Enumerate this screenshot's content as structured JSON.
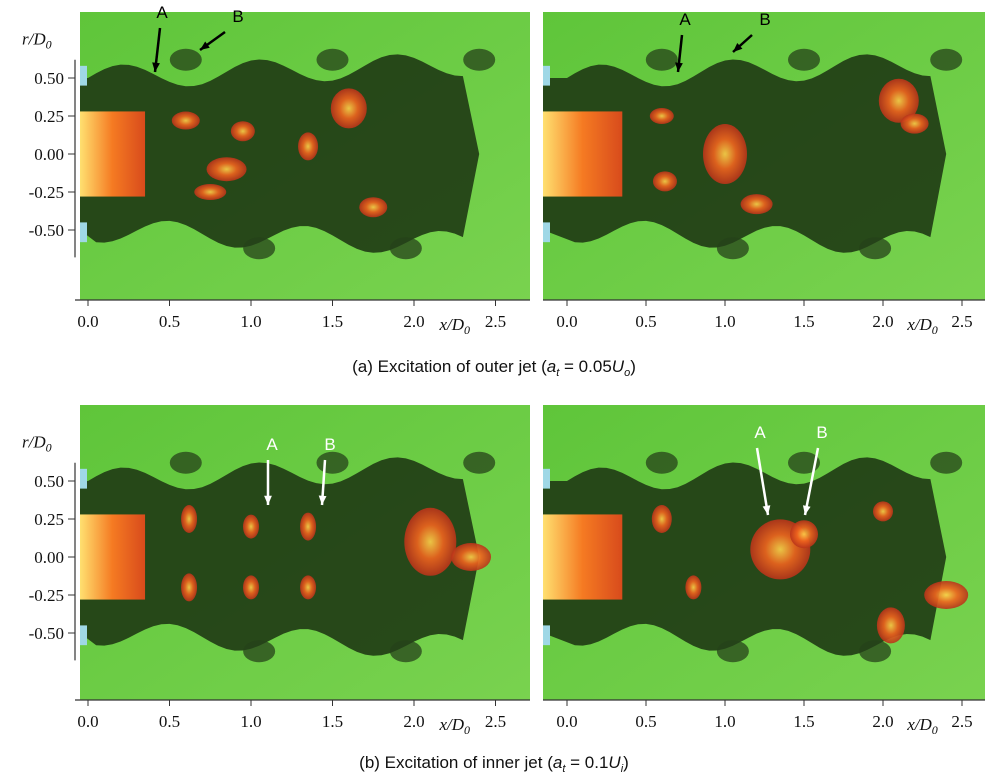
{
  "figure": {
    "rows": [
      {
        "caption": {
          "text": "(a) Excitation of outer jet (",
          "var": "a",
          "var_sub": "t",
          "eq": " = 0.05",
          "u": "U",
          "u_sub": "o",
          "close": ")"
        },
        "y_axis": {
          "label": "r/D",
          "label_sub": "0",
          "ticks": [
            {
              "value": 0.5,
              "label": "0.50"
            },
            {
              "value": 0.25,
              "label": "0.25"
            },
            {
              "value": 0,
              "label": "0.00"
            },
            {
              "value": -0.25,
              "label": "-0.25"
            },
            {
              "value": -0.5,
              "label": "-0.50"
            }
          ]
        },
        "images": [
          {
            "x_axis": {
              "label": "x/D",
              "label_sub": "0",
              "ticks": [
                {
                  "value": 0,
                  "label": "0.0"
                },
                0.5,
                {
                  "value": 1,
                  "label": "1.0"
                },
                1.5,
                {
                  "value": 2,
                  "label": "2.0"
                },
                2.5
              ]
            },
            "annotations": [
              "A",
              "B"
            ]
          },
          {
            "x_axis": {
              "label": "x/D",
              "label_sub": "0",
              "ticks": [
                {
                  "value": 0,
                  "label": "0.0"
                },
                0.5,
                {
                  "value": 1,
                  "label": "1.0"
                },
                1.5,
                {
                  "value": 2,
                  "label": "2.0"
                },
                2.5
              ]
            },
            "annotations": [
              "A",
              "B"
            ]
          }
        ]
      },
      {
        "caption": {
          "text": "(b) Excitation of inner jet (",
          "var": "a",
          "var_sub": "t",
          "eq": " = 0.1",
          "u": "U",
          "u_sub": "i",
          "close": ")"
        },
        "y_axis": {
          "label": "r/D",
          "label_sub": "0",
          "ticks": [
            {
              "value": 0.5,
              "label": "0.50"
            },
            {
              "value": 0.25,
              "label": "0.25"
            },
            {
              "value": 0,
              "label": "0.00"
            },
            {
              "value": -0.25,
              "label": "-0.25"
            },
            {
              "value": -0.5,
              "label": "-0.50"
            }
          ]
        },
        "images": [
          {
            "x_axis": {
              "label": "x/D",
              "label_sub": "0",
              "ticks": [
                {
                  "value": 0,
                  "label": "0.0"
                },
                0.5,
                {
                  "value": 1,
                  "label": "1.0"
                },
                1.5,
                {
                  "value": 2,
                  "label": "2.0"
                },
                2.5
              ]
            },
            "annotations": [
              "A",
              "B"
            ]
          },
          {
            "x_axis": {
              "label": "x/D",
              "label_sub": "0",
              "ticks": [
                {
                  "value": 0,
                  "label": "0.0"
                },
                0.5,
                {
                  "value": 1,
                  "label": "1.0"
                },
                1.5,
                {
                  "value": 2,
                  "label": "2.0"
                },
                2.5
              ]
            },
            "annotations": [
              "A",
              "B"
            ]
          }
        ]
      }
    ]
  }
}
